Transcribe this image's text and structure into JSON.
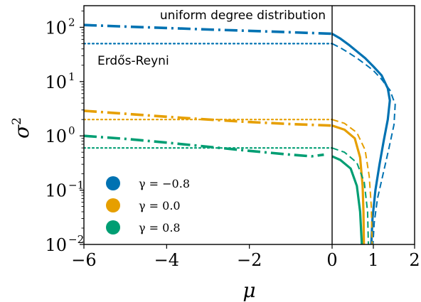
{
  "chart_data": {
    "type": "line",
    "xlabel": "μ",
    "ylabel": "σ",
    "ylabel_superscript": "2",
    "xlim": [
      -6,
      2
    ],
    "ylim": [
      0.01,
      250
    ],
    "yscale": "log",
    "x_ticks": [
      {
        "value": -6,
        "label": "−6"
      },
      {
        "value": -4,
        "label": "−4"
      },
      {
        "value": -2,
        "label": "−2"
      },
      {
        "value": 0,
        "label": "0"
      },
      {
        "value": 1,
        "label": "1"
      },
      {
        "value": 2,
        "label": "2"
      }
    ],
    "y_ticks": [
      {
        "value": 0.01,
        "base": "10",
        "exp": "−2"
      },
      {
        "value": 0.1,
        "base": "10",
        "exp": "−1"
      },
      {
        "value": 1,
        "base": "10",
        "exp": "0"
      },
      {
        "value": 10,
        "base": "10",
        "exp": "1"
      },
      {
        "value": 100,
        "base": "10",
        "exp": "2"
      }
    ],
    "x_axis_breakpoint": 0,
    "vline_at": 0,
    "annotations": {
      "uniform": "uniform degree distribution",
      "erdos": "Erdős-Reyni"
    },
    "legend": {
      "placement": "lower-left",
      "entries": [
        {
          "label": "γ = −0.8",
          "color": "#0072b2"
        },
        {
          "label": "γ = 0.0",
          "color": "#e69f00"
        },
        {
          "label": "γ = 0.8",
          "color": "#009e73"
        }
      ]
    },
    "series": [
      {
        "color": "#0072b2",
        "dashdot": [
          [
            -6,
            110
          ],
          [
            -5,
            103
          ],
          [
            -4,
            97
          ],
          [
            -3,
            91
          ],
          [
            -2,
            86
          ],
          [
            -1,
            81
          ],
          [
            0,
            76
          ]
        ],
        "dotted": [
          [
            -6,
            50
          ],
          [
            0,
            50
          ]
        ],
        "solid": [
          [
            0,
            76
          ],
          [
            0.2,
            62
          ],
          [
            0.4,
            48
          ],
          [
            0.6,
            36
          ],
          [
            0.8,
            27
          ],
          [
            1.0,
            19
          ],
          [
            1.2,
            13
          ],
          [
            1.35,
            7.5
          ],
          [
            1.4,
            4.5
          ],
          [
            1.35,
            2.0
          ],
          [
            1.25,
            0.8
          ],
          [
            1.15,
            0.3
          ],
          [
            1.05,
            0.1
          ],
          [
            0.98,
            0.03
          ],
          [
            0.95,
            0.01
          ]
        ],
        "dashed": [
          [
            0,
            50
          ],
          [
            0.2,
            42
          ],
          [
            0.4,
            34
          ],
          [
            0.6,
            27
          ],
          [
            0.8,
            21
          ],
          [
            1.0,
            16
          ],
          [
            1.2,
            11
          ],
          [
            1.4,
            7
          ],
          [
            1.53,
            3.8
          ],
          [
            1.5,
            1.6
          ],
          [
            1.38,
            0.6
          ],
          [
            1.25,
            0.22
          ],
          [
            1.1,
            0.07
          ],
          [
            1.02,
            0.025
          ],
          [
            0.99,
            0.01
          ]
        ]
      },
      {
        "color": "#e69f00",
        "dashdot": [
          [
            -6,
            2.9
          ],
          [
            -5,
            2.55
          ],
          [
            -4,
            2.25
          ],
          [
            -3,
            2.0
          ],
          [
            -2,
            1.8
          ],
          [
            -1,
            1.65
          ],
          [
            0,
            1.55
          ]
        ],
        "dotted": [
          [
            -6,
            2.0
          ],
          [
            0,
            2.0
          ]
        ],
        "solid": [
          [
            0,
            1.55
          ],
          [
            0.3,
            1.3
          ],
          [
            0.55,
            0.9
          ],
          [
            0.68,
            0.4
          ],
          [
            0.74,
            0.12
          ],
          [
            0.76,
            0.04
          ],
          [
            0.77,
            0.01
          ]
        ],
        "dashed": [
          [
            0,
            2.0
          ],
          [
            0.3,
            1.7
          ],
          [
            0.6,
            1.15
          ],
          [
            0.8,
            0.55
          ],
          [
            0.9,
            0.18
          ],
          [
            0.95,
            0.05
          ],
          [
            0.97,
            0.01
          ]
        ]
      },
      {
        "color": "#009e73",
        "dashdot": [
          [
            -6,
            1.0
          ],
          [
            -5,
            0.88
          ],
          [
            -4,
            0.75
          ],
          [
            -3,
            0.63
          ],
          [
            -2,
            0.53
          ],
          [
            -1,
            0.45
          ],
          [
            -0.5,
            0.42
          ],
          [
            -0.2,
            0.45
          ]
        ],
        "dotted": [
          [
            -6,
            0.6
          ],
          [
            0,
            0.6
          ]
        ],
        "solid": [
          [
            0,
            0.42
          ],
          [
            0.2,
            0.36
          ],
          [
            0.45,
            0.25
          ],
          [
            0.6,
            0.12
          ],
          [
            0.68,
            0.04
          ],
          [
            0.72,
            0.01
          ]
        ],
        "dashed": [
          [
            0,
            0.6
          ],
          [
            0.3,
            0.5
          ],
          [
            0.6,
            0.32
          ],
          [
            0.78,
            0.14
          ],
          [
            0.86,
            0.04
          ],
          [
            0.88,
            0.01
          ]
        ]
      }
    ]
  }
}
